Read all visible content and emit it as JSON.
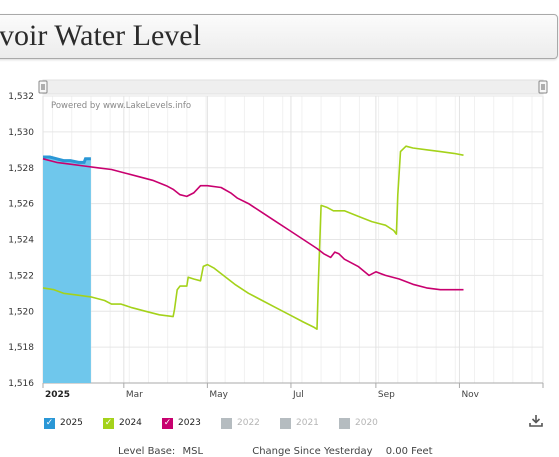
{
  "page": {
    "title": "rvoir Water Level"
  },
  "colors": {
    "series_2025": "#2a97d6",
    "series_2025_fill": "#6fc7ec",
    "series_2024": "#a4d21a",
    "series_2023": "#c8006f",
    "disabled": "#b5bcc0"
  },
  "chart_data": {
    "type": "line",
    "watermark": "Powered by www.LakeLevels.info",
    "xlabel": "",
    "ylabel": "",
    "ylim": [
      1516,
      1532
    ],
    "xlim": [
      "Jan 1",
      "Dec 31"
    ],
    "y_ticks": [
      "1,532",
      "1,530",
      "1,528",
      "1,526",
      "1,524",
      "1,522",
      "1,520",
      "1,518",
      "1,516"
    ],
    "x_ticks": [
      {
        "label": "2025",
        "day": 0,
        "bold": true
      },
      {
        "label": "Mar",
        "day": 59,
        "bold": false
      },
      {
        "label": "May",
        "day": 120,
        "bold": false
      },
      {
        "label": "Jul",
        "day": 181,
        "bold": false
      },
      {
        "label": "Sep",
        "day": 243,
        "bold": false
      },
      {
        "label": "Nov",
        "day": 304,
        "bold": false
      }
    ],
    "series": [
      {
        "name": "2025",
        "color": "#2a97d6",
        "style": "area",
        "points": [
          [
            0,
            1528.6
          ],
          [
            5,
            1528.6
          ],
          [
            10,
            1528.5
          ],
          [
            15,
            1528.4
          ],
          [
            20,
            1528.4
          ],
          [
            26,
            1528.3
          ],
          [
            30,
            1528.3
          ],
          [
            31,
            1528.5
          ],
          [
            35,
            1528.5
          ]
        ]
      },
      {
        "name": "2024",
        "color": "#a4d21a",
        "style": "line",
        "points": [
          [
            0,
            1521.3
          ],
          [
            8,
            1521.2
          ],
          [
            15,
            1521.0
          ],
          [
            25,
            1520.9
          ],
          [
            35,
            1520.8
          ],
          [
            45,
            1520.6
          ],
          [
            50,
            1520.4
          ],
          [
            57,
            1520.4
          ],
          [
            65,
            1520.2
          ],
          [
            75,
            1520.0
          ],
          [
            85,
            1519.8
          ],
          [
            95,
            1519.7
          ],
          [
            96,
            1520.1
          ],
          [
            98,
            1521.2
          ],
          [
            100,
            1521.4
          ],
          [
            105,
            1521.4
          ],
          [
            106,
            1521.9
          ],
          [
            110,
            1521.8
          ],
          [
            115,
            1521.7
          ],
          [
            117,
            1522.5
          ],
          [
            120,
            1522.6
          ],
          [
            125,
            1522.4
          ],
          [
            130,
            1522.1
          ],
          [
            140,
            1521.5
          ],
          [
            150,
            1521.0
          ],
          [
            160,
            1520.6
          ],
          [
            170,
            1520.2
          ],
          [
            180,
            1519.8
          ],
          [
            190,
            1519.4
          ],
          [
            198,
            1519.1
          ],
          [
            200,
            1519.0
          ],
          [
            201,
            1521.5
          ],
          [
            203,
            1525.9
          ],
          [
            207,
            1525.8
          ],
          [
            212,
            1525.6
          ],
          [
            220,
            1525.6
          ],
          [
            230,
            1525.3
          ],
          [
            240,
            1525.0
          ],
          [
            250,
            1524.8
          ],
          [
            256,
            1524.5
          ],
          [
            258,
            1524.3
          ],
          [
            259,
            1526.5
          ],
          [
            261,
            1528.9
          ],
          [
            265,
            1529.2
          ],
          [
            270,
            1529.1
          ],
          [
            280,
            1529.0
          ],
          [
            290,
            1528.9
          ],
          [
            300,
            1528.8
          ],
          [
            307,
            1528.7
          ]
        ]
      },
      {
        "name": "2023",
        "color": "#c8006f",
        "style": "line",
        "points": [
          [
            0,
            1528.5
          ],
          [
            10,
            1528.3
          ],
          [
            20,
            1528.2
          ],
          [
            30,
            1528.1
          ],
          [
            40,
            1528.0
          ],
          [
            50,
            1527.9
          ],
          [
            60,
            1527.7
          ],
          [
            70,
            1527.5
          ],
          [
            80,
            1527.3
          ],
          [
            90,
            1527.0
          ],
          [
            95,
            1526.8
          ],
          [
            100,
            1526.5
          ],
          [
            105,
            1526.4
          ],
          [
            110,
            1526.6
          ],
          [
            115,
            1527.0
          ],
          [
            120,
            1527.0
          ],
          [
            130,
            1526.9
          ],
          [
            137,
            1526.6
          ],
          [
            142,
            1526.3
          ],
          [
            150,
            1526.0
          ],
          [
            160,
            1525.5
          ],
          [
            170,
            1525.0
          ],
          [
            180,
            1524.5
          ],
          [
            190,
            1524.0
          ],
          [
            200,
            1523.5
          ],
          [
            205,
            1523.2
          ],
          [
            210,
            1523.0
          ],
          [
            213,
            1523.3
          ],
          [
            216,
            1523.2
          ],
          [
            220,
            1522.9
          ],
          [
            230,
            1522.5
          ],
          [
            238,
            1522.0
          ],
          [
            243,
            1522.2
          ],
          [
            250,
            1522.0
          ],
          [
            260,
            1521.8
          ],
          [
            270,
            1521.5
          ],
          [
            280,
            1521.3
          ],
          [
            290,
            1521.2
          ],
          [
            307,
            1521.2
          ]
        ]
      }
    ],
    "legend": {
      "placement": "bottom",
      "items": [
        {
          "label": "2025",
          "color": "#2a97d6",
          "active": true
        },
        {
          "label": "2024",
          "color": "#a4d21a",
          "active": true
        },
        {
          "label": "2023",
          "color": "#c8006f",
          "active": true
        },
        {
          "label": "2022",
          "color": "#b5bcc0",
          "active": false
        },
        {
          "label": "2021",
          "color": "#b5bcc0",
          "active": false
        },
        {
          "label": "2020",
          "color": "#b5bcc0",
          "active": false
        }
      ]
    }
  },
  "footer": {
    "level_base_label": "Level Base:",
    "level_base_value": "MSL",
    "change_label": "Change Since Yesterday",
    "change_value": "0.00 Feet"
  },
  "icons": {
    "download": "download-icon",
    "scroll_handle": "navigator-handle-icon"
  }
}
